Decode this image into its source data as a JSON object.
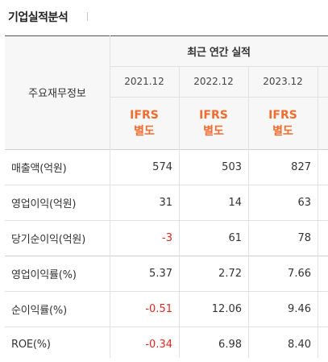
{
  "title": "기업실적분석",
  "table": {
    "row_header": "주요재무정보",
    "group_header": "최근 연간 실적",
    "columns": [
      {
        "year": "2021.12",
        "std_line1": "IFRS",
        "std_line2": "별도"
      },
      {
        "year": "2022.12",
        "std_line1": "IFRS",
        "std_line2": "별도"
      },
      {
        "year": "2023.12",
        "std_line1": "IFRS",
        "std_line2": "별도"
      }
    ],
    "rows": [
      {
        "label": "매출액(억원)",
        "values": [
          "574",
          "503",
          "827"
        ]
      },
      {
        "label": "영업이익(억원)",
        "values": [
          "31",
          "14",
          "63"
        ]
      },
      {
        "label": "당기순이익(억원)",
        "values": [
          "-3",
          "61",
          "78"
        ]
      },
      {
        "label": "영업이익률(%)",
        "values": [
          "5.37",
          "2.72",
          "7.66"
        ]
      },
      {
        "label": "순이익률(%)",
        "values": [
          "-0.51",
          "12.06",
          "9.46"
        ]
      },
      {
        "label": "ROE(%)",
        "values": [
          "-0.34",
          "6.98",
          "8.40"
        ]
      }
    ]
  },
  "colors": {
    "ifrs_accent": "#f26b2f",
    "negative": "#e5261f"
  }
}
